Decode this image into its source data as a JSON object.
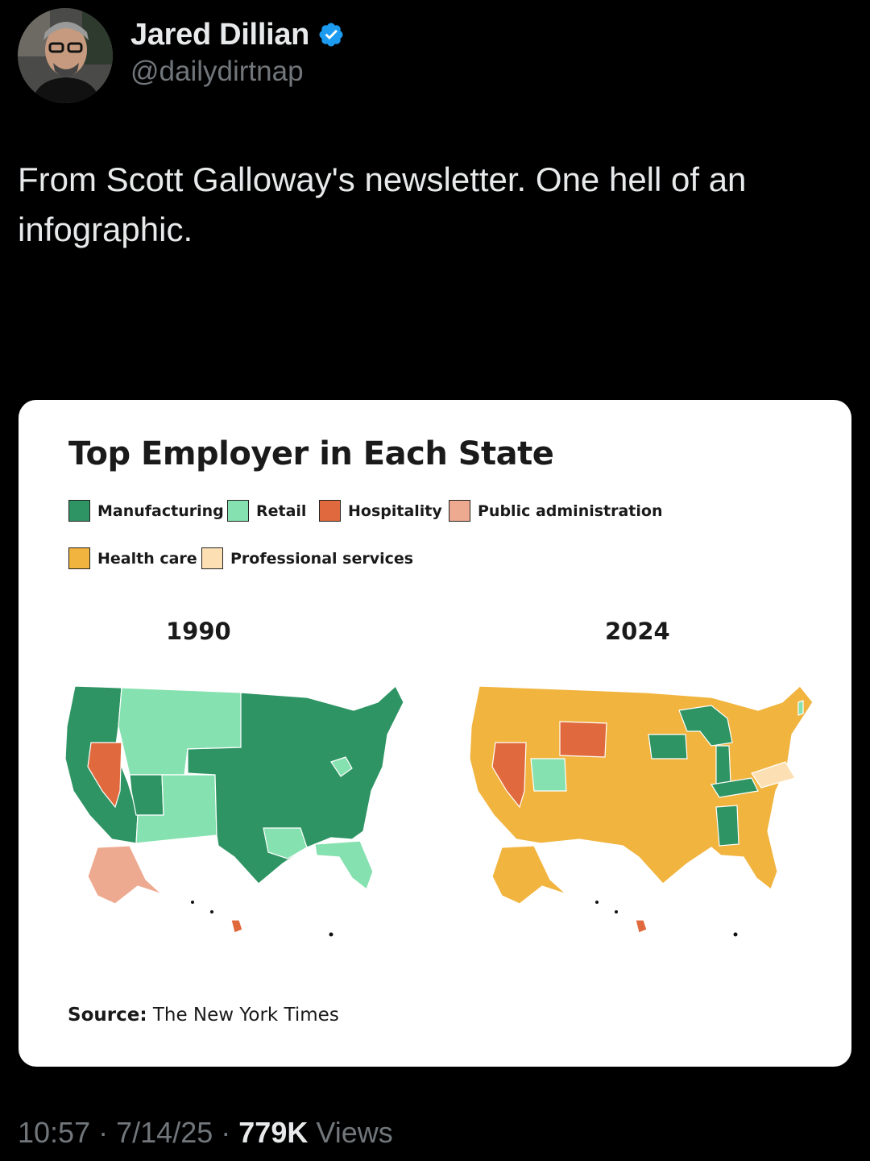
{
  "author": {
    "display_name": "Jared Dillian",
    "handle": "@dailydirtnap",
    "verified_icon": "verified-badge-icon"
  },
  "tweet": {
    "text": "From Scott Galloway's newsletter. One hell of an infographic."
  },
  "infographic": {
    "title": "Top Employer in Each State",
    "legend": [
      {
        "label": "Manufacturing",
        "color": "#2e9463"
      },
      {
        "label": "Retail",
        "color": "#86e1b0"
      },
      {
        "label": "Hospitality",
        "color": "#e06a3d"
      },
      {
        "label": "Public administration",
        "color": "#eeaa90"
      },
      {
        "label": "Health care",
        "color": "#f1b43f"
      },
      {
        "label": "Professional services",
        "color": "#fce0b4"
      }
    ],
    "map_1990": {
      "year": "1990"
    },
    "map_2024": {
      "year": "2024"
    },
    "source_label": "Source:",
    "source_value": "The New York Times"
  },
  "meta": {
    "time": "10:57",
    "sep1": "·",
    "date": "7/14/25",
    "sep2": "·",
    "views_count": "779K",
    "views_label": "Views"
  }
}
